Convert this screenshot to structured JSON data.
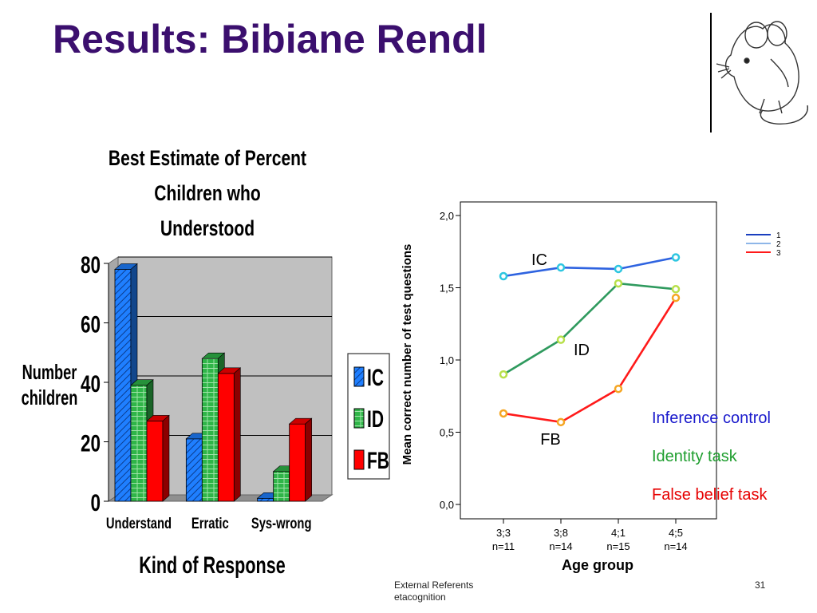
{
  "slide": {
    "title": "Results: Bibiane Rendl",
    "footer_line1": "External Referents",
    "footer_line2": "etacognition",
    "page_number": "31"
  },
  "chart_data": [
    {
      "type": "bar",
      "title_line1": "Best Estimate of Percent Children who",
      "title_line2": "Understood",
      "ylabel_line1": "Number",
      "ylabel_line2": "children",
      "xlabel": "Kind of Response",
      "categories": [
        "Understand",
        "Erratic",
        "Sys-wrong"
      ],
      "ylim": [
        0,
        80
      ],
      "yticks": [
        0,
        20,
        40,
        60,
        80
      ],
      "series": [
        {
          "name": "IC",
          "color": "#1f7fff",
          "values": [
            78,
            21,
            1
          ]
        },
        {
          "name": "ID",
          "color": "#2fb548",
          "values": [
            39,
            48,
            10
          ]
        },
        {
          "name": "FB",
          "color": "#ff0000",
          "values": [
            27,
            43,
            26
          ]
        }
      ],
      "grid": true,
      "legend": "right",
      "style": "3d"
    },
    {
      "type": "line",
      "ylabel": "Mean correct number of test questions",
      "xlabel": "Age group",
      "categories": [
        "3;3",
        "3;8",
        "4;1",
        "4;5"
      ],
      "category_sublabels": [
        "n=11",
        "n=14",
        "n=15",
        "n=14"
      ],
      "ylim": [
        0,
        2
      ],
      "yticks": [
        "0,0",
        "0,5",
        "1,0",
        "1,5",
        "2,0"
      ],
      "ytick_values": [
        0,
        0.5,
        1.0,
        1.5,
        2.0
      ],
      "legend_entries": [
        {
          "name": "1",
          "color": "#1a3fbf"
        },
        {
          "name": "2",
          "color": "#8eb6e8"
        },
        {
          "name": "3",
          "color": "#ff1a1a"
        }
      ],
      "series": [
        {
          "label": "IC",
          "color": "#2e63e0",
          "marker": "#2ec6e0",
          "values": [
            1.58,
            1.64,
            1.63,
            1.71
          ]
        },
        {
          "label": "ID",
          "color": "#2f9a5e",
          "marker": "#b8e04a",
          "values": [
            0.9,
            1.14,
            1.53,
            1.49
          ]
        },
        {
          "label": "FB",
          "color": "#ff1a1a",
          "marker": "#f5a623",
          "values": [
            0.63,
            0.57,
            0.8,
            1.43
          ]
        }
      ],
      "legend_text": [
        {
          "text": "Inference control",
          "color": "#1a1acc"
        },
        {
          "text": "Identity task",
          "color": "#1e9e2e"
        },
        {
          "text": "False belief task",
          "color": "#e60000"
        }
      ]
    }
  ]
}
